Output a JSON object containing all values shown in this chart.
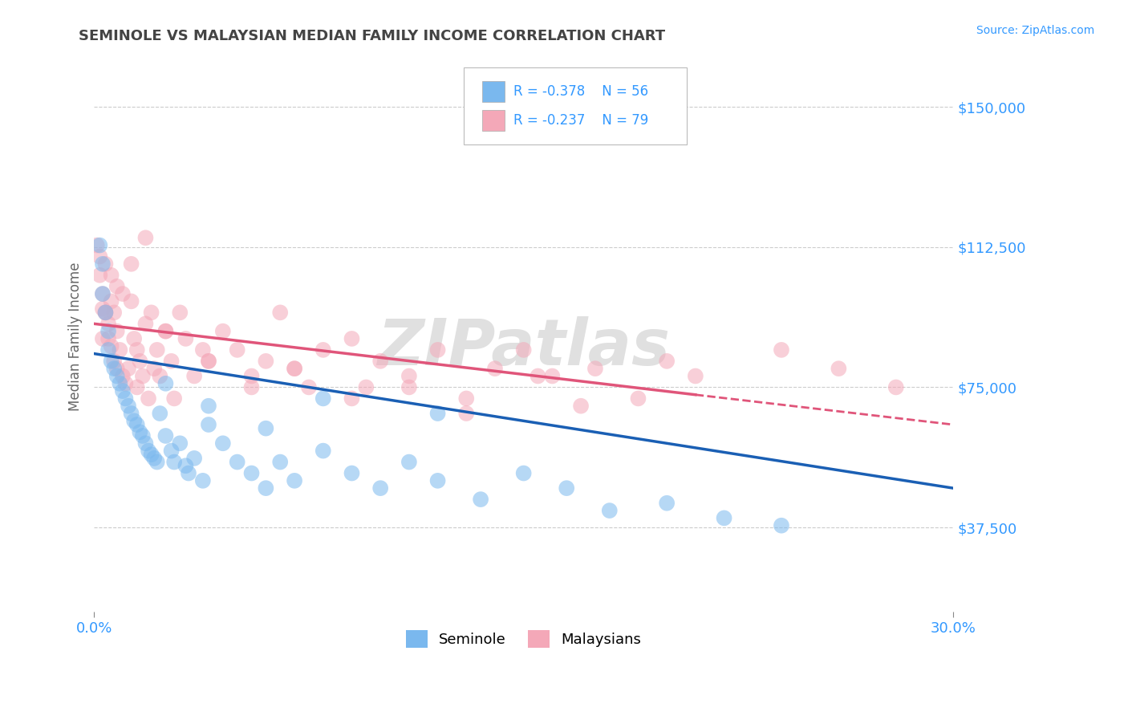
{
  "title": "SEMINOLE VS MALAYSIAN MEDIAN FAMILY INCOME CORRELATION CHART",
  "source_text": "Source: ZipAtlas.com",
  "ylabel": "Median Family Income",
  "xlim": [
    0.0,
    0.3
  ],
  "ylim": [
    15000,
    162000
  ],
  "yticks": [
    37500,
    75000,
    112500,
    150000
  ],
  "ytick_labels": [
    "$37,500",
    "$75,000",
    "$112,500",
    "$150,000"
  ],
  "xticks": [
    0.0,
    0.3
  ],
  "xtick_labels": [
    "0.0%",
    "30.0%"
  ],
  "background_color": "#ffffff",
  "grid_color": "#cccccc",
  "title_color": "#444444",
  "axis_label_color": "#3399ff",
  "watermark_text": "ZIPatlas",
  "watermark_color": "#e0e0e0",
  "legend_R1": "R = -0.378",
  "legend_N1": "N = 56",
  "legend_R2": "R = -0.237",
  "legend_N2": "N = 79",
  "seminole_color": "#7ab8ee",
  "malaysian_color": "#f4a8b8",
  "seminole_line_color": "#1a5fb4",
  "malaysian_line_color": "#e0557a",
  "seminole_scatter": {
    "x": [
      0.002,
      0.003,
      0.003,
      0.004,
      0.005,
      0.005,
      0.006,
      0.007,
      0.008,
      0.009,
      0.01,
      0.011,
      0.012,
      0.013,
      0.014,
      0.015,
      0.016,
      0.017,
      0.018,
      0.019,
      0.02,
      0.021,
      0.022,
      0.023,
      0.025,
      0.027,
      0.028,
      0.03,
      0.032,
      0.033,
      0.035,
      0.038,
      0.04,
      0.045,
      0.05,
      0.055,
      0.06,
      0.065,
      0.07,
      0.08,
      0.09,
      0.1,
      0.11,
      0.12,
      0.135,
      0.15,
      0.165,
      0.18,
      0.2,
      0.22,
      0.24,
      0.12,
      0.08,
      0.06,
      0.04,
      0.025
    ],
    "y": [
      113000,
      108000,
      100000,
      95000,
      90000,
      85000,
      82000,
      80000,
      78000,
      76000,
      74000,
      72000,
      70000,
      68000,
      66000,
      65000,
      63000,
      62000,
      60000,
      58000,
      57000,
      56000,
      55000,
      68000,
      62000,
      58000,
      55000,
      60000,
      54000,
      52000,
      56000,
      50000,
      65000,
      60000,
      55000,
      52000,
      48000,
      55000,
      50000,
      58000,
      52000,
      48000,
      55000,
      50000,
      45000,
      52000,
      48000,
      42000,
      44000,
      40000,
      38000,
      68000,
      72000,
      64000,
      70000,
      76000
    ]
  },
  "malaysian_scatter": {
    "x": [
      0.001,
      0.002,
      0.002,
      0.003,
      0.003,
      0.004,
      0.004,
      0.005,
      0.005,
      0.006,
      0.006,
      0.007,
      0.007,
      0.008,
      0.008,
      0.009,
      0.01,
      0.01,
      0.011,
      0.012,
      0.013,
      0.014,
      0.015,
      0.015,
      0.016,
      0.017,
      0.018,
      0.019,
      0.02,
      0.021,
      0.022,
      0.023,
      0.025,
      0.027,
      0.028,
      0.03,
      0.032,
      0.035,
      0.038,
      0.04,
      0.045,
      0.05,
      0.055,
      0.06,
      0.065,
      0.07,
      0.075,
      0.08,
      0.09,
      0.095,
      0.1,
      0.11,
      0.12,
      0.13,
      0.14,
      0.15,
      0.16,
      0.175,
      0.19,
      0.21,
      0.24,
      0.26,
      0.28,
      0.2,
      0.17,
      0.155,
      0.13,
      0.11,
      0.09,
      0.07,
      0.055,
      0.04,
      0.025,
      0.018,
      0.013,
      0.008,
      0.006,
      0.004,
      0.003
    ],
    "y": [
      113000,
      110000,
      105000,
      100000,
      96000,
      108000,
      95000,
      92000,
      88000,
      105000,
      86000,
      95000,
      82000,
      90000,
      80000,
      85000,
      100000,
      78000,
      76000,
      80000,
      98000,
      88000,
      85000,
      75000,
      82000,
      78000,
      92000,
      72000,
      95000,
      80000,
      85000,
      78000,
      90000,
      82000,
      72000,
      95000,
      88000,
      78000,
      85000,
      82000,
      90000,
      85000,
      78000,
      82000,
      95000,
      80000,
      75000,
      85000,
      88000,
      75000,
      82000,
      78000,
      85000,
      72000,
      80000,
      85000,
      78000,
      80000,
      72000,
      78000,
      85000,
      80000,
      75000,
      82000,
      70000,
      78000,
      68000,
      75000,
      72000,
      80000,
      75000,
      82000,
      90000,
      115000,
      108000,
      102000,
      98000,
      95000,
      88000
    ]
  },
  "seminole_trendline": {
    "x": [
      0.0,
      0.3
    ],
    "y": [
      84000,
      48000
    ]
  },
  "malaysian_trendline_solid": {
    "x": [
      0.0,
      0.21
    ],
    "y": [
      92000,
      73000
    ]
  },
  "malaysian_trendline_dashed": {
    "x": [
      0.21,
      0.3
    ],
    "y": [
      73000,
      65000
    ]
  }
}
